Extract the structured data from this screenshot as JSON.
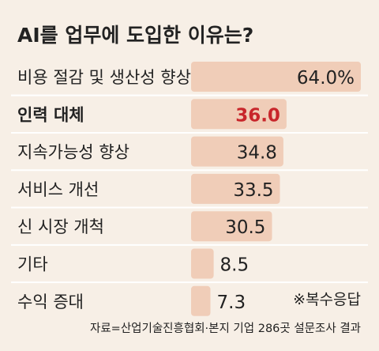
{
  "chart_data": {
    "type": "bar",
    "orientation": "horizontal",
    "title": "AI를 업무에 도입한 이유는?",
    "categories": [
      "비용 절감 및 생산성 향상",
      "인력 대체",
      "지속가능성 향상",
      "서비스 개선",
      "신 시장 개척",
      "기타",
      "수익 증대"
    ],
    "values": [
      64.0,
      36.0,
      34.8,
      33.5,
      30.5,
      8.5,
      7.3
    ],
    "value_labels": [
      "64.0%",
      "36.0",
      "34.8",
      "33.5",
      "30.5",
      "8.5",
      "7.3"
    ],
    "highlight_index": 1,
    "xlim": [
      0,
      64.0
    ],
    "unit": "%",
    "note": "※복수응답",
    "source": "자료=산업기술진흥협회·본지 기업 286곳 설문조사 결과",
    "colors": {
      "background": "#f7efe6",
      "bar": "#f0cdb8",
      "highlight_text": "#c8262b",
      "text": "#222222",
      "divider": "#ffffff"
    }
  }
}
